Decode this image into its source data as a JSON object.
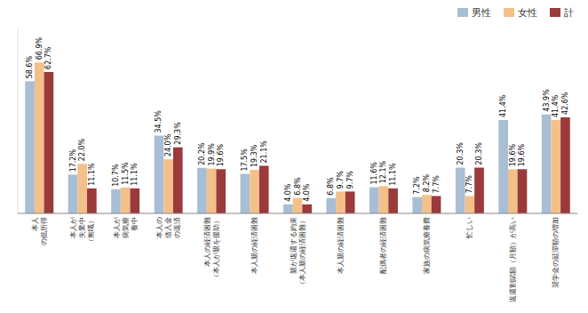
{
  "chart_data": {
    "type": "bar",
    "categories": [
      "本人\nの低所得",
      "本人が\n失業中\n（無職）",
      "本人が\n病気療\n養中",
      "本人の\n借入金\nの返済",
      "本人の経済困難\n（本人が親を援助）",
      "本人親の経済困難",
      "親が返還する約束\n（本人親の経済困難）",
      "本人親の経済困難",
      "配偶者の経済困難",
      "家族の病気療養費",
      "忙しい",
      "返還割賦額（月額）が高い",
      "奨学金の延滞額の増加"
    ],
    "series": [
      {
        "name": "男性",
        "color": "#A8BED4",
        "values": [
          58.6,
          17.2,
          10.7,
          34.5,
          20.2,
          17.5,
          4.0,
          6.8,
          11.6,
          7.2,
          20.3,
          41.4,
          43.9
        ],
        "value_labels": [
          "58.6%",
          "17.2%",
          "10.7%",
          "34.5%",
          "20.2%",
          "17.5%",
          "4.0%",
          "6.8%",
          "11.6%",
          "7.2%",
          "20.3%",
          "41.4%",
          "43.9%"
        ]
      },
      {
        "name": "女性",
        "color": "#F4C08A",
        "values": [
          66.9,
          22.0,
          11.5,
          24.0,
          19.9,
          19.3,
          6.8,
          9.7,
          12.1,
          8.2,
          7.7,
          19.6,
          41.4
        ],
        "value_labels": [
          "66.9%",
          "22.0%",
          "11.5%",
          "24.0%",
          "19.9%",
          "19.3%",
          "6.8%",
          "9.7%",
          "12.1%",
          "8.2%",
          "7.7%",
          "19.6%",
          "41.4%"
        ]
      },
      {
        "name": "計",
        "color": "#9B3A3A",
        "values": [
          62.7,
          11.1,
          11.1,
          29.3,
          19.6,
          21.1,
          4.0,
          9.7,
          11.1,
          7.7,
          20.3,
          19.6,
          42.6
        ],
        "value_labels": [
          "62.7%",
          "11.1%",
          "11.1%",
          "29.3%",
          "19.6%",
          "21.1%",
          "4.0%",
          "9.7%",
          "11.1%",
          "7.7%",
          "20.3%",
          "19.6%",
          "42.6%"
        ]
      }
    ],
    "ylim": [
      0,
      82
    ],
    "grid": false,
    "legend": "upper right",
    "data_labels": true,
    "tick_labels": "x"
  }
}
